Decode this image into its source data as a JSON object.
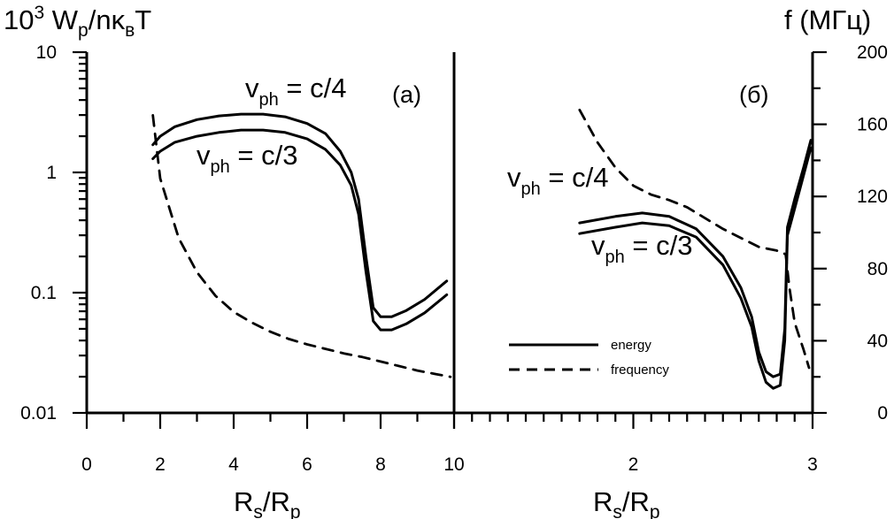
{
  "chart_data": {
    "type": "line",
    "left_axis": {
      "title_parts": [
        "10",
        "3",
        " W",
        "p",
        "/nκ",
        "в",
        "T"
      ],
      "scale": "log",
      "range": [
        0.01,
        10
      ],
      "tick_labels": [
        "10",
        "1",
        "0.1",
        "0.01"
      ],
      "tick_values": [
        10,
        1,
        0.1,
        0.01
      ]
    },
    "right_axis": {
      "title": "f  (МГц)",
      "range": [
        0,
        200
      ],
      "tick_labels": [
        "200",
        "160",
        "120",
        "80",
        "40",
        "0"
      ],
      "tick_values": [
        200,
        160,
        120,
        80,
        40,
        0
      ]
    },
    "panels": [
      {
        "label": "(a)",
        "xlabel_parts": [
          "R",
          "s",
          "/R",
          "p"
        ],
        "xlim": [
          0,
          10
        ],
        "x_tick_labels": [
          "0",
          "2",
          "4",
          "6",
          "8",
          "10"
        ],
        "x_tick_values": [
          0,
          2,
          4,
          6,
          8,
          10
        ],
        "annotations": [
          {
            "parts": [
              "v",
              "ph",
              " = c/4"
            ]
          },
          {
            "parts": [
              "v",
              "ph",
              " = c/3"
            ]
          }
        ],
        "series": [
          {
            "kind": "energy",
            "axis": "left",
            "x": [
              1.8,
              2.0,
              2.4,
              3.0,
              3.6,
              4.2,
              4.8,
              5.4,
              6.0,
              6.5,
              6.9,
              7.2,
              7.4,
              7.6,
              7.8,
              8.0,
              8.3,
              8.7,
              9.2,
              9.8
            ],
            "y": [
              1.7,
              2.0,
              2.4,
              2.75,
              2.95,
              3.05,
              3.05,
              2.9,
              2.55,
              2.1,
              1.5,
              1.0,
              0.6,
              0.2,
              0.075,
              0.063,
              0.063,
              0.071,
              0.088,
              0.125
            ]
          },
          {
            "kind": "energy",
            "axis": "left",
            "x": [
              1.8,
              2.0,
              2.4,
              3.0,
              3.6,
              4.2,
              4.8,
              5.4,
              6.0,
              6.5,
              6.9,
              7.2,
              7.4,
              7.6,
              7.8,
              8.0,
              8.3,
              8.7,
              9.2,
              9.8
            ],
            "y": [
              1.3,
              1.5,
              1.78,
              2.0,
              2.15,
              2.25,
              2.25,
              2.15,
              1.9,
              1.55,
              1.15,
              0.78,
              0.45,
              0.15,
              0.058,
              0.049,
              0.049,
              0.055,
              0.068,
              0.096
            ]
          },
          {
            "kind": "frequency",
            "axis": "right",
            "x": [
              1.8,
              2.0,
              2.5,
              3.0,
              3.5,
              4.0,
              4.5,
              5.0,
              5.5,
              6.0,
              6.5,
              7.0,
              7.5,
              8.0,
              8.5,
              9.0,
              9.5,
              9.9
            ],
            "y": [
              165,
              130,
              97,
              78,
              65,
              56,
              50,
              45,
              41,
              38,
              35.5,
              33,
              31,
              28.5,
              26,
              23.5,
              21.5,
              20
            ]
          }
        ]
      },
      {
        "label": "(б)",
        "xlabel_parts": [
          "R",
          "s",
          "/R",
          "p"
        ],
        "xlim": [
          1.0,
          3.0
        ],
        "x_tick_labels": [
          "2",
          "3"
        ],
        "x_tick_values": [
          2,
          3
        ],
        "annotations": [
          {
            "parts": [
              "v",
              "ph",
              " = c/4"
            ]
          },
          {
            "parts": [
              "v",
              "ph",
              " = c/3"
            ]
          }
        ],
        "legend": {
          "position": "bottom-center",
          "entries": [
            {
              "label": "energy",
              "style": "solid"
            },
            {
              "label": "frequency",
              "style": "dashed"
            }
          ]
        },
        "series": [
          {
            "kind": "energy",
            "axis": "left",
            "x": [
              1.7,
              1.9,
              2.05,
              2.2,
              2.35,
              2.5,
              2.6,
              2.66,
              2.7,
              2.74,
              2.78,
              2.82,
              2.845,
              2.86,
              2.9,
              2.95,
              2.99
            ],
            "y": [
              0.38,
              0.43,
              0.46,
              0.43,
              0.34,
              0.2,
              0.11,
              0.063,
              0.032,
              0.022,
              0.02,
              0.021,
              0.05,
              0.35,
              0.6,
              1.1,
              1.85
            ]
          },
          {
            "kind": "energy",
            "axis": "left",
            "x": [
              1.7,
              1.9,
              2.05,
              2.2,
              2.35,
              2.5,
              2.6,
              2.66,
              2.7,
              2.74,
              2.78,
              2.82,
              2.845,
              2.86,
              2.9,
              2.95,
              2.99
            ],
            "y": [
              0.31,
              0.35,
              0.38,
              0.36,
              0.29,
              0.17,
              0.09,
              0.052,
              0.027,
              0.018,
              0.016,
              0.017,
              0.04,
              0.3,
              0.5,
              0.95,
              1.6
            ]
          },
          {
            "kind": "frequency",
            "axis": "right",
            "x": [
              1.7,
              1.8,
              1.9,
              2.0,
              2.1,
              2.2,
              2.3,
              2.4,
              2.5,
              2.6,
              2.7,
              2.8,
              2.85,
              2.87,
              2.9,
              2.95,
              2.98
            ],
            "y": [
              168,
              150,
              136,
              126,
              121,
              118,
              114,
              108,
              102,
              97,
              92,
              90,
              88,
              70,
              50,
              35,
              25
            ]
          }
        ]
      }
    ]
  }
}
